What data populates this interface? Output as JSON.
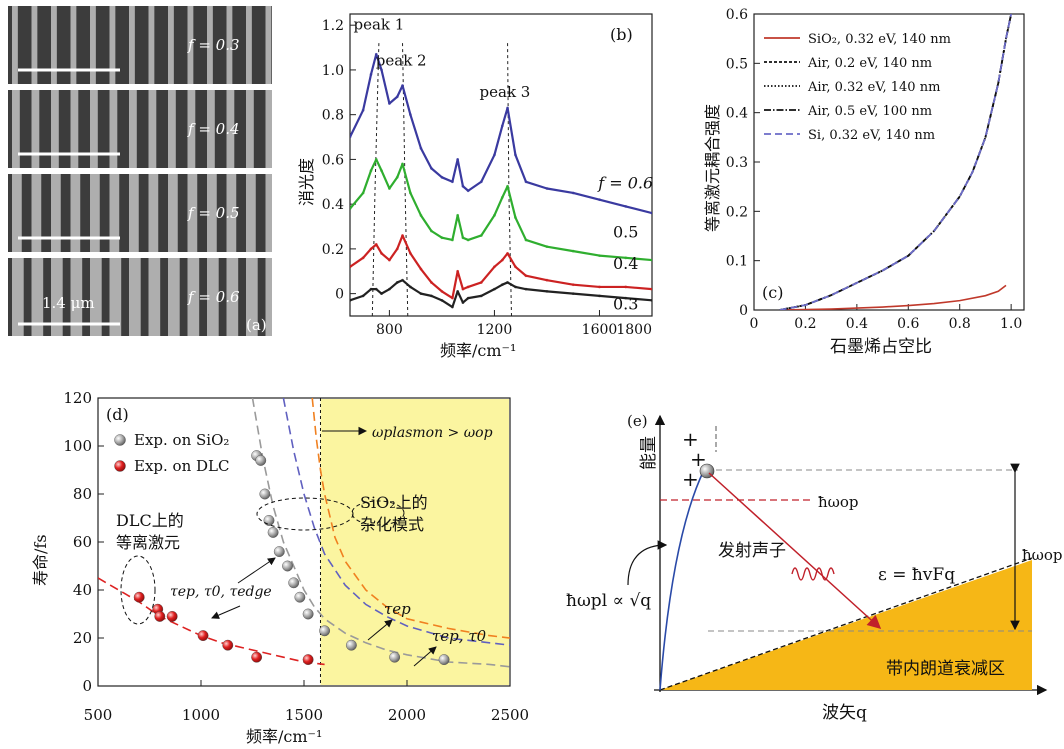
{
  "panel_a": {
    "label": "(a)",
    "scale_bar_label": "1.4 μm",
    "images": [
      {
        "f_label": "f = 0.3",
        "fill_factor": 0.3
      },
      {
        "f_label": "f = 0.4",
        "fill_factor": 0.4
      },
      {
        "f_label": "f = 0.5",
        "fill_factor": 0.5
      },
      {
        "f_label": "f = 0.6",
        "fill_factor": 0.6
      }
    ]
  },
  "chart_data": [
    {
      "panel": "b",
      "type": "line",
      "label": "(b)",
      "xlabel": "频率/cm⁻¹",
      "ylabel": "消光度",
      "xlim": [
        650,
        1800
      ],
      "ylim": [
        -0.1,
        1.25
      ],
      "xticks": [
        800,
        1200,
        1600,
        1800
      ],
      "yticks": [
        0,
        0.2,
        0.4,
        0.6,
        0.8,
        1.0,
        1.2
      ],
      "peak_labels": [
        {
          "text": "peak 1",
          "x": 760,
          "y": 1.18
        },
        {
          "text": "peak 2",
          "x": 845,
          "y": 1.02
        },
        {
          "text": "peak 3",
          "x": 1240,
          "y": 0.88
        }
      ],
      "peak_positions": [
        [
          760,
          745,
          735
        ],
        [
          850,
          860,
          870
        ],
        [
          1250,
          1255,
          1265
        ]
      ],
      "series": [
        {
          "name": "f = 0.6",
          "color": "#3a3aa0",
          "x": [
            650,
            700,
            730,
            750,
            770,
            800,
            830,
            850,
            880,
            920,
            960,
            1000,
            1040,
            1060,
            1080,
            1100,
            1150,
            1200,
            1230,
            1250,
            1280,
            1320,
            1400,
            1500,
            1600,
            1700,
            1800
          ],
          "y": [
            0.7,
            0.82,
            0.98,
            1.07,
            1.0,
            0.85,
            0.88,
            0.93,
            0.8,
            0.65,
            0.56,
            0.52,
            0.5,
            0.6,
            0.48,
            0.46,
            0.5,
            0.62,
            0.75,
            0.83,
            0.62,
            0.5,
            0.47,
            0.45,
            0.42,
            0.39,
            0.36
          ]
        },
        {
          "name": "0.5",
          "color": "#2fae2f",
          "x": [
            650,
            700,
            730,
            750,
            770,
            800,
            830,
            850,
            880,
            920,
            960,
            1000,
            1040,
            1060,
            1080,
            1100,
            1150,
            1200,
            1230,
            1250,
            1280,
            1320,
            1400,
            1500,
            1600,
            1700,
            1800
          ],
          "y": [
            0.38,
            0.45,
            0.55,
            0.6,
            0.55,
            0.47,
            0.52,
            0.58,
            0.45,
            0.35,
            0.28,
            0.25,
            0.24,
            0.35,
            0.25,
            0.24,
            0.26,
            0.35,
            0.43,
            0.48,
            0.34,
            0.24,
            0.21,
            0.19,
            0.17,
            0.16,
            0.15
          ]
        },
        {
          "name": "0.4",
          "color": "#cc2222",
          "x": [
            650,
            700,
            730,
            750,
            770,
            800,
            830,
            850,
            880,
            920,
            960,
            1000,
            1040,
            1060,
            1080,
            1100,
            1150,
            1200,
            1230,
            1250,
            1280,
            1320,
            1400,
            1500,
            1600,
            1700,
            1800
          ],
          "y": [
            0.12,
            0.16,
            0.2,
            0.22,
            0.18,
            0.15,
            0.2,
            0.26,
            0.18,
            0.11,
            0.05,
            0.01,
            -0.02,
            0.1,
            0.02,
            0.03,
            0.05,
            0.12,
            0.15,
            0.18,
            0.12,
            0.08,
            0.06,
            0.04,
            0.03,
            0.03,
            0.02
          ]
        },
        {
          "name": "0.3",
          "color": "#222222",
          "x": [
            650,
            700,
            730,
            750,
            770,
            800,
            830,
            850,
            880,
            920,
            960,
            1000,
            1040,
            1060,
            1080,
            1100,
            1150,
            1200,
            1230,
            1250,
            1280,
            1320,
            1400,
            1500,
            1600,
            1700,
            1800
          ],
          "y": [
            -0.03,
            -0.01,
            0.02,
            0.02,
            0.0,
            0.02,
            0.05,
            0.06,
            0.03,
            0.0,
            -0.01,
            -0.03,
            -0.06,
            0.01,
            -0.04,
            -0.02,
            -0.01,
            0.02,
            0.04,
            0.05,
            0.03,
            0.02,
            0.01,
            0.0,
            -0.01,
            -0.02,
            -0.03
          ]
        }
      ],
      "series_labels": [
        {
          "text": "f = 0.6",
          "x": 1700,
          "y": 0.47
        },
        {
          "text": "0.5",
          "x": 1700,
          "y": 0.25
        },
        {
          "text": "0.4",
          "x": 1700,
          "y": 0.11
        },
        {
          "text": "0.3",
          "x": 1700,
          "y": -0.07
        }
      ]
    },
    {
      "panel": "c",
      "type": "line",
      "label": "(c)",
      "xlabel": "石墨烯占空比",
      "ylabel": "等离激元耦合强度",
      "xlim": [
        0,
        1.05
      ],
      "ylim": [
        0,
        0.6
      ],
      "xticks": [
        0,
        0.2,
        0.4,
        0.6,
        0.8,
        1.0
      ],
      "yticks": [
        0,
        0.1,
        0.2,
        0.3,
        0.4,
        0.5,
        0.6
      ],
      "legend_position": "top-left",
      "series": [
        {
          "name": "SiO₂, 0.32 eV, 140 nm",
          "color": "#c0392b",
          "dash": "",
          "x": [
            0.1,
            0.2,
            0.3,
            0.4,
            0.5,
            0.6,
            0.7,
            0.8,
            0.9,
            0.95,
            0.98
          ],
          "y": [
            0.0,
            0.001,
            0.002,
            0.004,
            0.006,
            0.009,
            0.013,
            0.019,
            0.029,
            0.038,
            0.05
          ]
        },
        {
          "name": "Air, 0.2 eV, 140 nm",
          "color": "#111111",
          "dash": "3,2",
          "x": [
            0.1,
            0.2,
            0.3,
            0.4,
            0.5,
            0.6,
            0.7,
            0.8,
            0.85,
            0.9,
            0.95,
            0.98,
            1.0
          ],
          "y": [
            0.0,
            0.01,
            0.03,
            0.055,
            0.08,
            0.11,
            0.16,
            0.23,
            0.28,
            0.35,
            0.46,
            0.55,
            0.6
          ]
        },
        {
          "name": "Air, 0.32 eV, 140 nm",
          "color": "#111111",
          "dash": "1.5,2",
          "x": [
            0.1,
            0.2,
            0.3,
            0.4,
            0.5,
            0.6,
            0.7,
            0.8,
            0.85,
            0.9,
            0.95,
            0.98,
            1.0
          ],
          "y": [
            0.0,
            0.01,
            0.03,
            0.055,
            0.08,
            0.11,
            0.16,
            0.23,
            0.28,
            0.35,
            0.46,
            0.55,
            0.6
          ]
        },
        {
          "name": "Air, 0.5 eV, 100 nm",
          "color": "#111111",
          "dash": "7,2,1.5,2",
          "x": [
            0.1,
            0.2,
            0.3,
            0.4,
            0.5,
            0.6,
            0.7,
            0.8,
            0.85,
            0.9,
            0.95,
            0.98,
            1.0
          ],
          "y": [
            0.0,
            0.01,
            0.03,
            0.055,
            0.08,
            0.11,
            0.16,
            0.23,
            0.28,
            0.35,
            0.46,
            0.55,
            0.6
          ]
        },
        {
          "name": "Si, 0.32 eV, 140 nm",
          "color": "#6b6bc8",
          "dash": "7,4",
          "x": [
            0.1,
            0.2,
            0.3,
            0.4,
            0.5,
            0.6,
            0.7,
            0.8,
            0.85,
            0.9,
            0.95,
            0.98,
            1.0
          ],
          "y": [
            0.0,
            0.01,
            0.03,
            0.055,
            0.08,
            0.11,
            0.16,
            0.23,
            0.28,
            0.35,
            0.46,
            0.55,
            0.6
          ]
        }
      ]
    },
    {
      "panel": "d",
      "type": "scatter",
      "label": "(d)",
      "xlabel": "频率/cm⁻¹",
      "ylabel": "寿命/fs",
      "xlim": [
        500,
        2500
      ],
      "ylim": [
        0,
        120
      ],
      "xticks": [
        500,
        1000,
        1500,
        2000,
        2500
      ],
      "yticks": [
        0,
        20,
        40,
        60,
        80,
        100,
        120
      ],
      "legend_position": "top-left",
      "highlight_region": {
        "x": [
          1580,
          2500
        ],
        "color": "#fbf5a0"
      },
      "boundary_x": 1580,
      "series": [
        {
          "name": "Exp. on SiO₂",
          "color": "#9a9a9a",
          "x": [
            1270,
            1290,
            1310,
            1330,
            1350,
            1380,
            1420,
            1450,
            1480,
            1520,
            1600,
            1730,
            1940,
            2180
          ],
          "y": [
            96,
            94,
            80,
            69,
            64,
            56,
            50,
            43,
            37,
            30,
            23,
            17,
            12,
            11
          ]
        },
        {
          "name": "Exp. on DLC",
          "color": "#dd2222",
          "x": [
            700,
            790,
            800,
            860,
            1010,
            1130,
            1270,
            1520
          ],
          "y": [
            37,
            32,
            29,
            29,
            21,
            17,
            12,
            11
          ]
        }
      ],
      "fit_curves": [
        {
          "name": "DLC fit",
          "color": "#dd2222",
          "dash": "9,5",
          "x": [
            500,
            600,
            700,
            800,
            900,
            1000,
            1100,
            1200,
            1300,
            1400,
            1500,
            1600
          ],
          "y": [
            45,
            40,
            35,
            29,
            25,
            21,
            18,
            16,
            14,
            12,
            10,
            9
          ]
        },
        {
          "name": "SiO2 fit gray",
          "color": "#9a9a9a",
          "dash": "9,5",
          "x": [
            1250,
            1300,
            1350,
            1400,
            1450,
            1500,
            1550,
            1600,
            1700,
            1800,
            1900,
            2000,
            2200,
            2400,
            2500
          ],
          "y": [
            120,
            95,
            75,
            60,
            50,
            40,
            33,
            28,
            22,
            18,
            15,
            13,
            10,
            9,
            8
          ]
        },
        {
          "name": "τep τ0 fit",
          "color": "#6060c0",
          "dash": "9,5",
          "x": [
            1400,
            1450,
            1500,
            1550,
            1600,
            1700,
            1800,
            1900,
            2000,
            2200,
            2400,
            2500
          ],
          "y": [
            120,
            98,
            80,
            66,
            55,
            42,
            34,
            29,
            25,
            20,
            18,
            17
          ]
        },
        {
          "name": "τep fit",
          "color": "#f08020",
          "dash": "9,5",
          "x": [
            1540,
            1560,
            1580,
            1600,
            1650,
            1700,
            1800,
            1900,
            2000,
            2200,
            2400,
            2500
          ],
          "y": [
            120,
            103,
            90,
            80,
            62,
            52,
            40,
            33,
            28,
            24,
            21,
            20
          ]
        }
      ],
      "annotations": [
        {
          "text": "ωplasmon > ωop"
        },
        {
          "text": "SiO₂上的"
        },
        {
          "text": "杂化模式"
        },
        {
          "text": "DLC上的"
        },
        {
          "text": "等离激元"
        },
        {
          "text": "τep, τ0, τedge"
        },
        {
          "text": "τep"
        },
        {
          "text": "τep, τ0"
        }
      ]
    },
    {
      "panel": "e",
      "type": "diagram",
      "label": "(e)",
      "xlabel": "波矢q",
      "ylabel": "能量",
      "labels": {
        "hwop_line": "ħωop",
        "hwop_right": "ħωop",
        "emit_phonon": "发射声子",
        "intraband_line": "ε = ħvFq",
        "landau": "带内朗道衰减区",
        "dispersion": "ħωpl ∝ √q",
        "plus": "+"
      }
    }
  ]
}
